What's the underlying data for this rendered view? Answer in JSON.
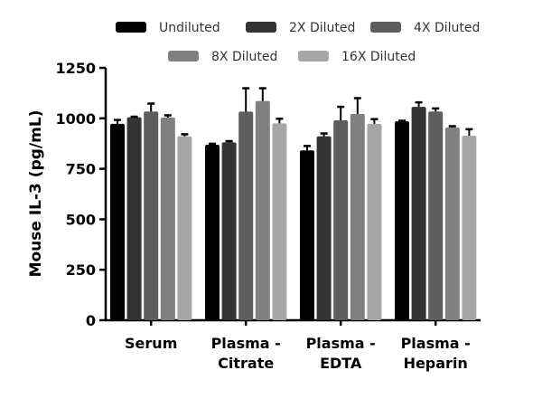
{
  "chart_data": {
    "type": "bar",
    "title": "",
    "xlabel": "",
    "ylabel": "Mouse IL-3 (pg/mL)",
    "ylim": [
      0,
      1250
    ],
    "yticks": [
      0,
      250,
      500,
      750,
      1000,
      1250
    ],
    "ytick_labels": [
      "0",
      "250",
      "500",
      "750",
      "1000",
      "1250"
    ],
    "categories": [
      [
        "Serum"
      ],
      [
        "Plasma -",
        "Citrate"
      ],
      [
        "Plasma -",
        "EDTA"
      ],
      [
        "Plasma -",
        "Heparin"
      ]
    ],
    "legend_position": "top",
    "grid": false,
    "error_bars": true,
    "series": [
      {
        "name": "Undiluted",
        "color": "#000000",
        "values": [
          973,
          869,
          841,
          985
        ],
        "errors": [
          19,
          5,
          22,
          3
        ]
      },
      {
        "name": "2X Diluted",
        "color": "#333333",
        "values": [
          1005,
          881,
          911,
          1057
        ],
        "errors": [
          3,
          6,
          14,
          22
        ]
      },
      {
        "name": "4X Diluted",
        "color": "#5e5e5e",
        "values": [
          1034,
          1033,
          990,
          1034
        ],
        "errors": [
          39,
          116,
          67,
          15
        ]
      },
      {
        "name": "8X Diluted",
        "color": "#808080",
        "values": [
          1004,
          1086,
          1022,
          955
        ],
        "errors": [
          11,
          63,
          78,
          6
        ]
      },
      {
        "name": "16X Diluted",
        "color": "#a6a6a6",
        "values": [
          911,
          975,
          973,
          914
        ],
        "errors": [
          10,
          23,
          23,
          32
        ]
      }
    ]
  }
}
